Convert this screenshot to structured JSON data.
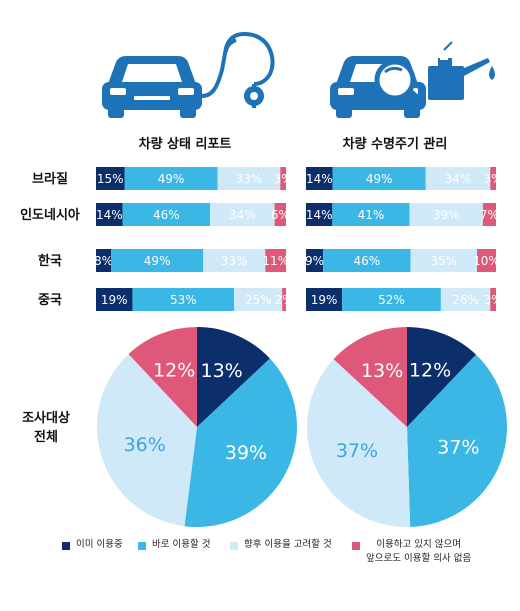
{
  "colors": {
    "already_using": "#0c2f6b",
    "will_use_soon": "#3bb7e6",
    "considering": "#cfe9f8",
    "no_intention": "#e05879",
    "icon_blue": "#1e73b8"
  },
  "icons": [
    "car-stethoscope-icon",
    "car-oil-can-icon"
  ],
  "chart_data": [
    {
      "type": "bar",
      "stacked": true,
      "orientation": "horizontal",
      "title": "차량 상태 리포트",
      "categories": [
        "브라질",
        "인도네시아",
        "한국",
        "중국"
      ],
      "series": [
        {
          "name": "이미 이용중",
          "values": [
            15,
            14,
            8,
            19
          ]
        },
        {
          "name": "바로 이용할 것",
          "values": [
            49,
            46,
            49,
            53
          ]
        },
        {
          "name": "향후 이용을 고려할 것",
          "values": [
            33,
            34,
            33,
            25
          ]
        },
        {
          "name": "이용하고 있지 않으며 앞으로도 이용할 의사 없음",
          "values": [
            3,
            6,
            11,
            2
          ]
        }
      ],
      "value_suffix": "%"
    },
    {
      "type": "bar",
      "stacked": true,
      "orientation": "horizontal",
      "title": "차량 수명주기 관리",
      "categories": [
        "브라질",
        "인도네시아",
        "한국",
        "중국"
      ],
      "series": [
        {
          "name": "이미 이용중",
          "values": [
            14,
            14,
            9,
            19
          ]
        },
        {
          "name": "바로 이용할 것",
          "values": [
            49,
            41,
            46,
            52
          ]
        },
        {
          "name": "향후 이용을 고려할 것",
          "values": [
            34,
            39,
            35,
            26
          ]
        },
        {
          "name": "이용하고 있지 않으며 앞으로도 이용할 의사 없음",
          "values": [
            3,
            7,
            10,
            3
          ]
        }
      ],
      "value_suffix": "%"
    },
    {
      "type": "pie",
      "category_label": "조사대상 전체",
      "labels": [
        "이미 이용중",
        "바로 이용할 것",
        "향후 이용을 고려할 것",
        "이용하고 있지 않으며 앞으로도 이용할 의사 없음"
      ],
      "values": [
        13,
        39,
        36,
        12
      ],
      "value_suffix": "%"
    },
    {
      "type": "pie",
      "category_label": "조사대상 전체",
      "labels": [
        "이미 이용중",
        "바로 이용할 것",
        "향후 이용을 고려할 것",
        "이용하고 있지 않으며 앞으로도 이용할 의사 없음"
      ],
      "values": [
        12,
        37,
        37,
        13
      ],
      "value_suffix": "%"
    }
  ],
  "overall_label_line1": "조사대상",
  "overall_label_line2": "전체",
  "legend": [
    {
      "label": "이미 이용중"
    },
    {
      "label": "바로 이용할 것"
    },
    {
      "label": "향후 이용을 고려할 것"
    },
    {
      "label_line1": "이용하고 있지 않으며",
      "label_line2": "앞으로도 이용할 의사 없음"
    }
  ]
}
